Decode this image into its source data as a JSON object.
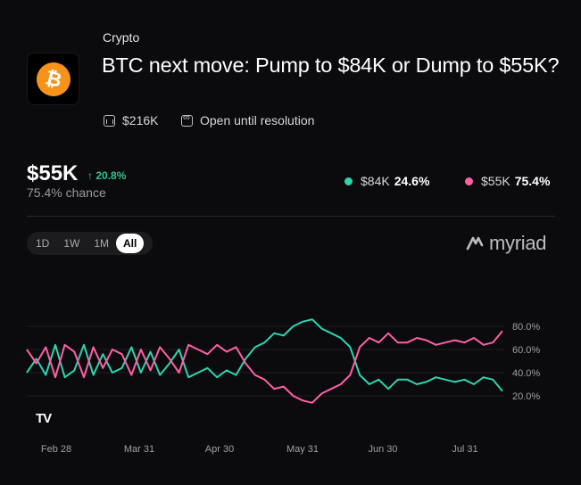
{
  "market": {
    "category": "Crypto",
    "title": "BTC next move: Pump to $84K or Dump to $55K?",
    "icon": "bitcoin-icon",
    "icon_glyph": "₿",
    "volume": "$216K",
    "status": "Open until resolution"
  },
  "summary": {
    "price": "$55K",
    "change": "20.8%",
    "change_arrow": "↑",
    "chance": "75.4% chance"
  },
  "legend": [
    {
      "label": "$84K",
      "value": "24.6%",
      "color": "#2ed3b0"
    },
    {
      "label": "$55K",
      "value": "75.4%",
      "color": "#ff5fa8"
    }
  ],
  "range_options": [
    "1D",
    "1W",
    "1M",
    "All"
  ],
  "range_selected": "All",
  "brand": "myriad",
  "tv_logo": "TV",
  "chart_data": {
    "type": "line",
    "x_ticks": [
      "Feb 28",
      "Mar 31",
      "Apr 30",
      "May 31",
      "Jun 30",
      "Jul 31"
    ],
    "y_ticks": [
      "80.0%",
      "60.0%",
      "40.0%",
      "20.0%"
    ],
    "ylim": [
      0,
      100
    ],
    "grid": true,
    "series": [
      {
        "name": "$84K",
        "color": "#2ed3b0",
        "values": [
          40,
          52,
          38,
          64,
          36,
          42,
          64,
          38,
          56,
          40,
          44,
          62,
          40,
          58,
          38,
          48,
          60,
          36,
          40,
          44,
          36,
          42,
          38,
          52,
          62,
          66,
          74,
          72,
          80,
          84,
          86,
          78,
          74,
          70,
          62,
          38,
          30,
          34,
          26,
          34,
          34,
          30,
          32,
          36,
          34,
          32,
          34,
          30,
          36,
          34,
          24
        ]
      },
      {
        "name": "$55K",
        "color": "#ff5fa8",
        "values": [
          60,
          48,
          62,
          36,
          64,
          58,
          36,
          62,
          44,
          60,
          56,
          38,
          60,
          42,
          62,
          52,
          40,
          64,
          60,
          56,
          64,
          58,
          62,
          48,
          38,
          34,
          26,
          28,
          20,
          16,
          14,
          22,
          26,
          30,
          38,
          62,
          70,
          66,
          74,
          66,
          66,
          70,
          68,
          64,
          66,
          68,
          66,
          70,
          64,
          66,
          76
        ]
      }
    ]
  }
}
